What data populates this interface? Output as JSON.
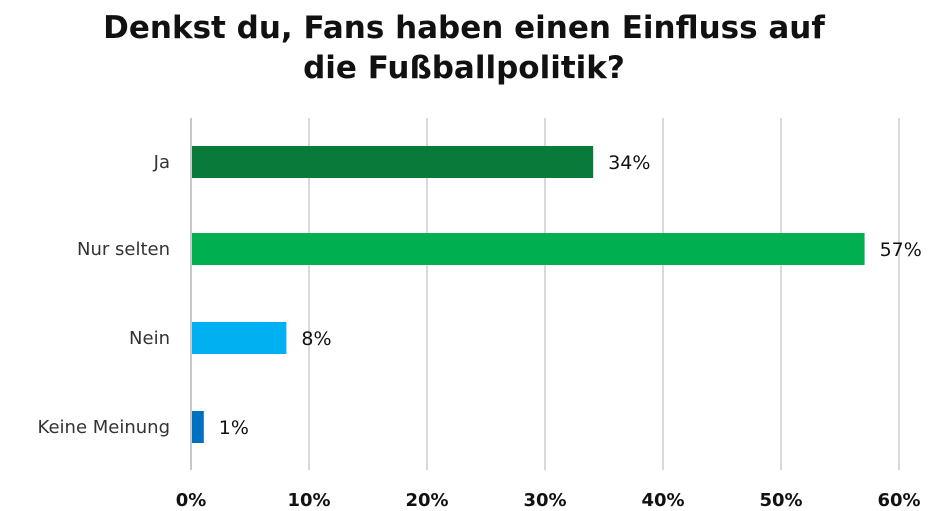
{
  "title_lines": [
    "Denkst du, Fans haben einen Einfluss auf",
    "die Fußballpolitik?"
  ],
  "chart_data": {
    "type": "bar",
    "orientation": "horizontal",
    "title": "Denkst du, Fans haben einen Einfluss auf die Fußballpolitik?",
    "categories": [
      "Ja",
      "Nur selten",
      "Nein",
      "Keine Meinung"
    ],
    "values": [
      34,
      57,
      8,
      1
    ],
    "value_labels": [
      "34%",
      "57%",
      "8%",
      "1%"
    ],
    "colors": [
      "#0a7a3b",
      "#00b050",
      "#00b0f0",
      "#0070c0"
    ],
    "xlim": [
      0,
      60
    ],
    "xticks": [
      0,
      10,
      20,
      30,
      40,
      50,
      60
    ],
    "xtick_labels": [
      "0%",
      "10%",
      "20%",
      "30%",
      "40%",
      "50%",
      "60%"
    ],
    "grid": "vertical",
    "gridline_color": "#d9d9d9",
    "legend": "none"
  }
}
